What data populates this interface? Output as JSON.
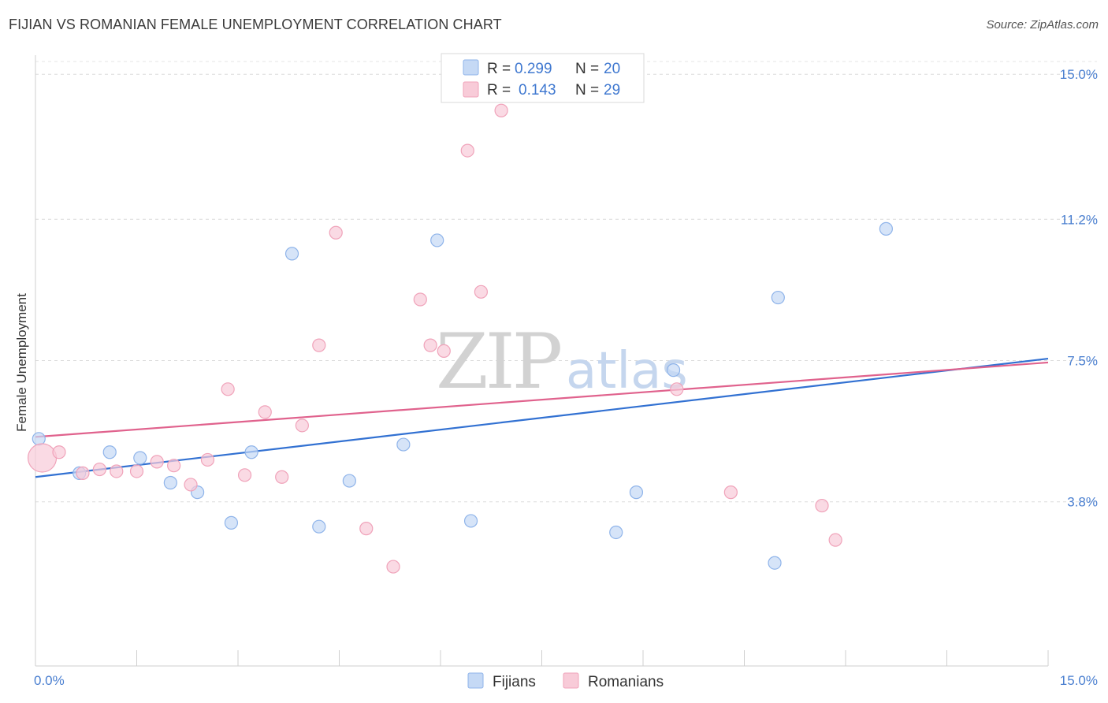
{
  "title": "FIJIAN VS ROMANIAN FEMALE UNEMPLOYMENT CORRELATION CHART",
  "source": "Source: ZipAtlas.com",
  "watermark": {
    "part1": "ZIP",
    "part2": "atlas"
  },
  "chart_data": {
    "type": "scatter",
    "xlabel": "",
    "ylabel": "Female Unemployment",
    "xlim": [
      0,
      15
    ],
    "ylim": [
      -0.5,
      15.5
    ],
    "x_tick_labels": [
      {
        "value": 0,
        "label": "0.0%"
      },
      {
        "value": 15,
        "label": "15.0%"
      }
    ],
    "y_ticks": [
      {
        "value": 3.8,
        "label": "3.8%"
      },
      {
        "value": 7.5,
        "label": "7.5%"
      },
      {
        "value": 11.2,
        "label": "11.2%"
      },
      {
        "value": 15.0,
        "label": "15.0%"
      }
    ],
    "grid": "horizontal dashed",
    "legend_position": "top-center",
    "series": [
      {
        "name": "Fijians",
        "color": "#8fb4ea",
        "fill": "#c5d9f5",
        "line_color": "#3271d2",
        "R": "0.299",
        "N": "20",
        "trend": {
          "x0": 0,
          "y0": 4.45,
          "x1": 15,
          "y1": 7.55
        },
        "points": [
          {
            "x": 0.05,
            "y": 5.45
          },
          {
            "x": 0.65,
            "y": 4.55
          },
          {
            "x": 1.1,
            "y": 5.1
          },
          {
            "x": 1.55,
            "y": 4.95
          },
          {
            "x": 2.0,
            "y": 4.3
          },
          {
            "x": 2.4,
            "y": 4.05
          },
          {
            "x": 2.9,
            "y": 3.25
          },
          {
            "x": 3.2,
            "y": 5.1
          },
          {
            "x": 3.8,
            "y": 10.3
          },
          {
            "x": 4.2,
            "y": 3.15
          },
          {
            "x": 4.65,
            "y": 4.35
          },
          {
            "x": 5.45,
            "y": 5.3
          },
          {
            "x": 5.95,
            "y": 10.65
          },
          {
            "x": 6.45,
            "y": 3.3
          },
          {
            "x": 8.6,
            "y": 3.0
          },
          {
            "x": 8.9,
            "y": 4.05
          },
          {
            "x": 9.45,
            "y": 7.25
          },
          {
            "x": 10.95,
            "y": 2.2
          },
          {
            "x": 11.0,
            "y": 9.15
          },
          {
            "x": 12.6,
            "y": 10.95
          }
        ]
      },
      {
        "name": "Romanians",
        "color": "#f0a3ba",
        "fill": "#f8cbd8",
        "line_color": "#e0628d",
        "R": "0.143",
        "N": "29",
        "trend": {
          "x0": 0,
          "y0": 5.5,
          "x1": 15,
          "y1": 7.45
        },
        "points": [
          {
            "x": 0.1,
            "y": 4.95,
            "size": "large"
          },
          {
            "x": 0.35,
            "y": 5.1
          },
          {
            "x": 0.7,
            "y": 4.55
          },
          {
            "x": 0.95,
            "y": 4.65
          },
          {
            "x": 1.2,
            "y": 4.6
          },
          {
            "x": 1.5,
            "y": 4.6
          },
          {
            "x": 1.8,
            "y": 4.85
          },
          {
            "x": 2.05,
            "y": 4.75
          },
          {
            "x": 2.3,
            "y": 4.25
          },
          {
            "x": 2.55,
            "y": 4.9
          },
          {
            "x": 2.85,
            "y": 6.75
          },
          {
            "x": 3.1,
            "y": 4.5
          },
          {
            "x": 3.4,
            "y": 6.15
          },
          {
            "x": 3.65,
            "y": 4.45
          },
          {
            "x": 3.95,
            "y": 5.8
          },
          {
            "x": 4.2,
            "y": 7.9
          },
          {
            "x": 4.45,
            "y": 10.85
          },
          {
            "x": 4.9,
            "y": 3.1
          },
          {
            "x": 5.3,
            "y": 2.1
          },
          {
            "x": 5.7,
            "y": 9.1
          },
          {
            "x": 5.85,
            "y": 7.9
          },
          {
            "x": 6.05,
            "y": 7.75
          },
          {
            "x": 6.4,
            "y": 13.0
          },
          {
            "x": 6.6,
            "y": 9.3
          },
          {
            "x": 6.9,
            "y": 14.05
          },
          {
            "x": 9.5,
            "y": 6.75
          },
          {
            "x": 10.3,
            "y": 4.05
          },
          {
            "x": 11.65,
            "y": 3.7
          },
          {
            "x": 11.85,
            "y": 2.8
          }
        ]
      }
    ]
  }
}
